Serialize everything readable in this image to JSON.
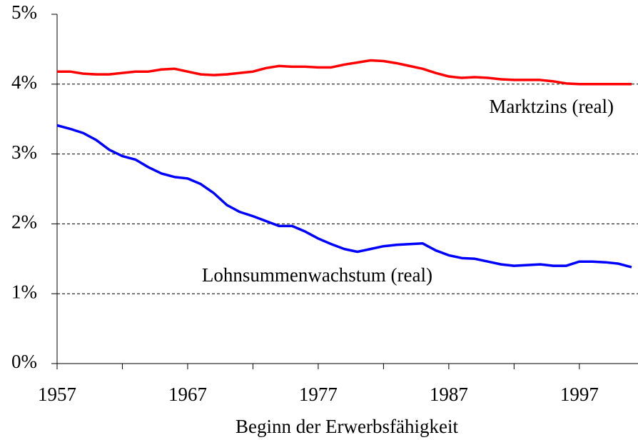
{
  "chart_data": {
    "type": "line",
    "xlabel": "Beginn der Erwerbsfähigkeit",
    "x": [
      1957,
      1958,
      1959,
      1960,
      1961,
      1962,
      1963,
      1964,
      1965,
      1966,
      1967,
      1968,
      1969,
      1970,
      1971,
      1972,
      1973,
      1974,
      1975,
      1976,
      1977,
      1978,
      1979,
      1980,
      1981,
      1982,
      1983,
      1984,
      1985,
      1986,
      1987,
      1988,
      1989,
      1990,
      1991,
      1992,
      1993,
      1994,
      1995,
      1996,
      1997,
      1998,
      1999,
      2000,
      2001
    ],
    "series": [
      {
        "name": "Marktzins (real)",
        "color": "#ff0000",
        "values": [
          4.18,
          4.18,
          4.15,
          4.14,
          4.14,
          4.16,
          4.18,
          4.18,
          4.21,
          4.22,
          4.18,
          4.14,
          4.13,
          4.14,
          4.16,
          4.18,
          4.23,
          4.26,
          4.25,
          4.25,
          4.24,
          4.24,
          4.28,
          4.31,
          4.34,
          4.33,
          4.3,
          4.26,
          4.22,
          4.16,
          4.11,
          4.09,
          4.1,
          4.09,
          4.07,
          4.06,
          4.06,
          4.06,
          4.04,
          4.01,
          4.0,
          4.0,
          4.0,
          4.0,
          4.0
        ]
      },
      {
        "name": "Lohnsummenwachstum (real)",
        "color": "#0000ff",
        "values": [
          3.41,
          3.36,
          3.3,
          3.2,
          3.06,
          2.97,
          2.92,
          2.81,
          2.72,
          2.67,
          2.65,
          2.57,
          2.44,
          2.27,
          2.17,
          2.11,
          2.04,
          1.97,
          1.97,
          1.89,
          1.79,
          1.71,
          1.64,
          1.6,
          1.64,
          1.68,
          1.7,
          1.71,
          1.72,
          1.62,
          1.55,
          1.51,
          1.5,
          1.46,
          1.42,
          1.4,
          1.41,
          1.42,
          1.4,
          1.4,
          1.46,
          1.46,
          1.45,
          1.43,
          1.38
        ]
      }
    ],
    "xlim": [
      1957,
      2001
    ],
    "xticks": [
      1957,
      1967,
      1977,
      1987,
      1997
    ],
    "xminor_ticks": [
      1962,
      1972,
      1982,
      1992
    ],
    "ylim": [
      0,
      5
    ],
    "yticks": [
      {
        "value": 0,
        "label": "0%"
      },
      {
        "value": 1,
        "label": "1%"
      },
      {
        "value": 2,
        "label": "2%"
      },
      {
        "value": 3,
        "label": "3%"
      },
      {
        "value": 4,
        "label": "4%"
      },
      {
        "value": 5,
        "label": "5%"
      }
    ],
    "grid": true
  }
}
